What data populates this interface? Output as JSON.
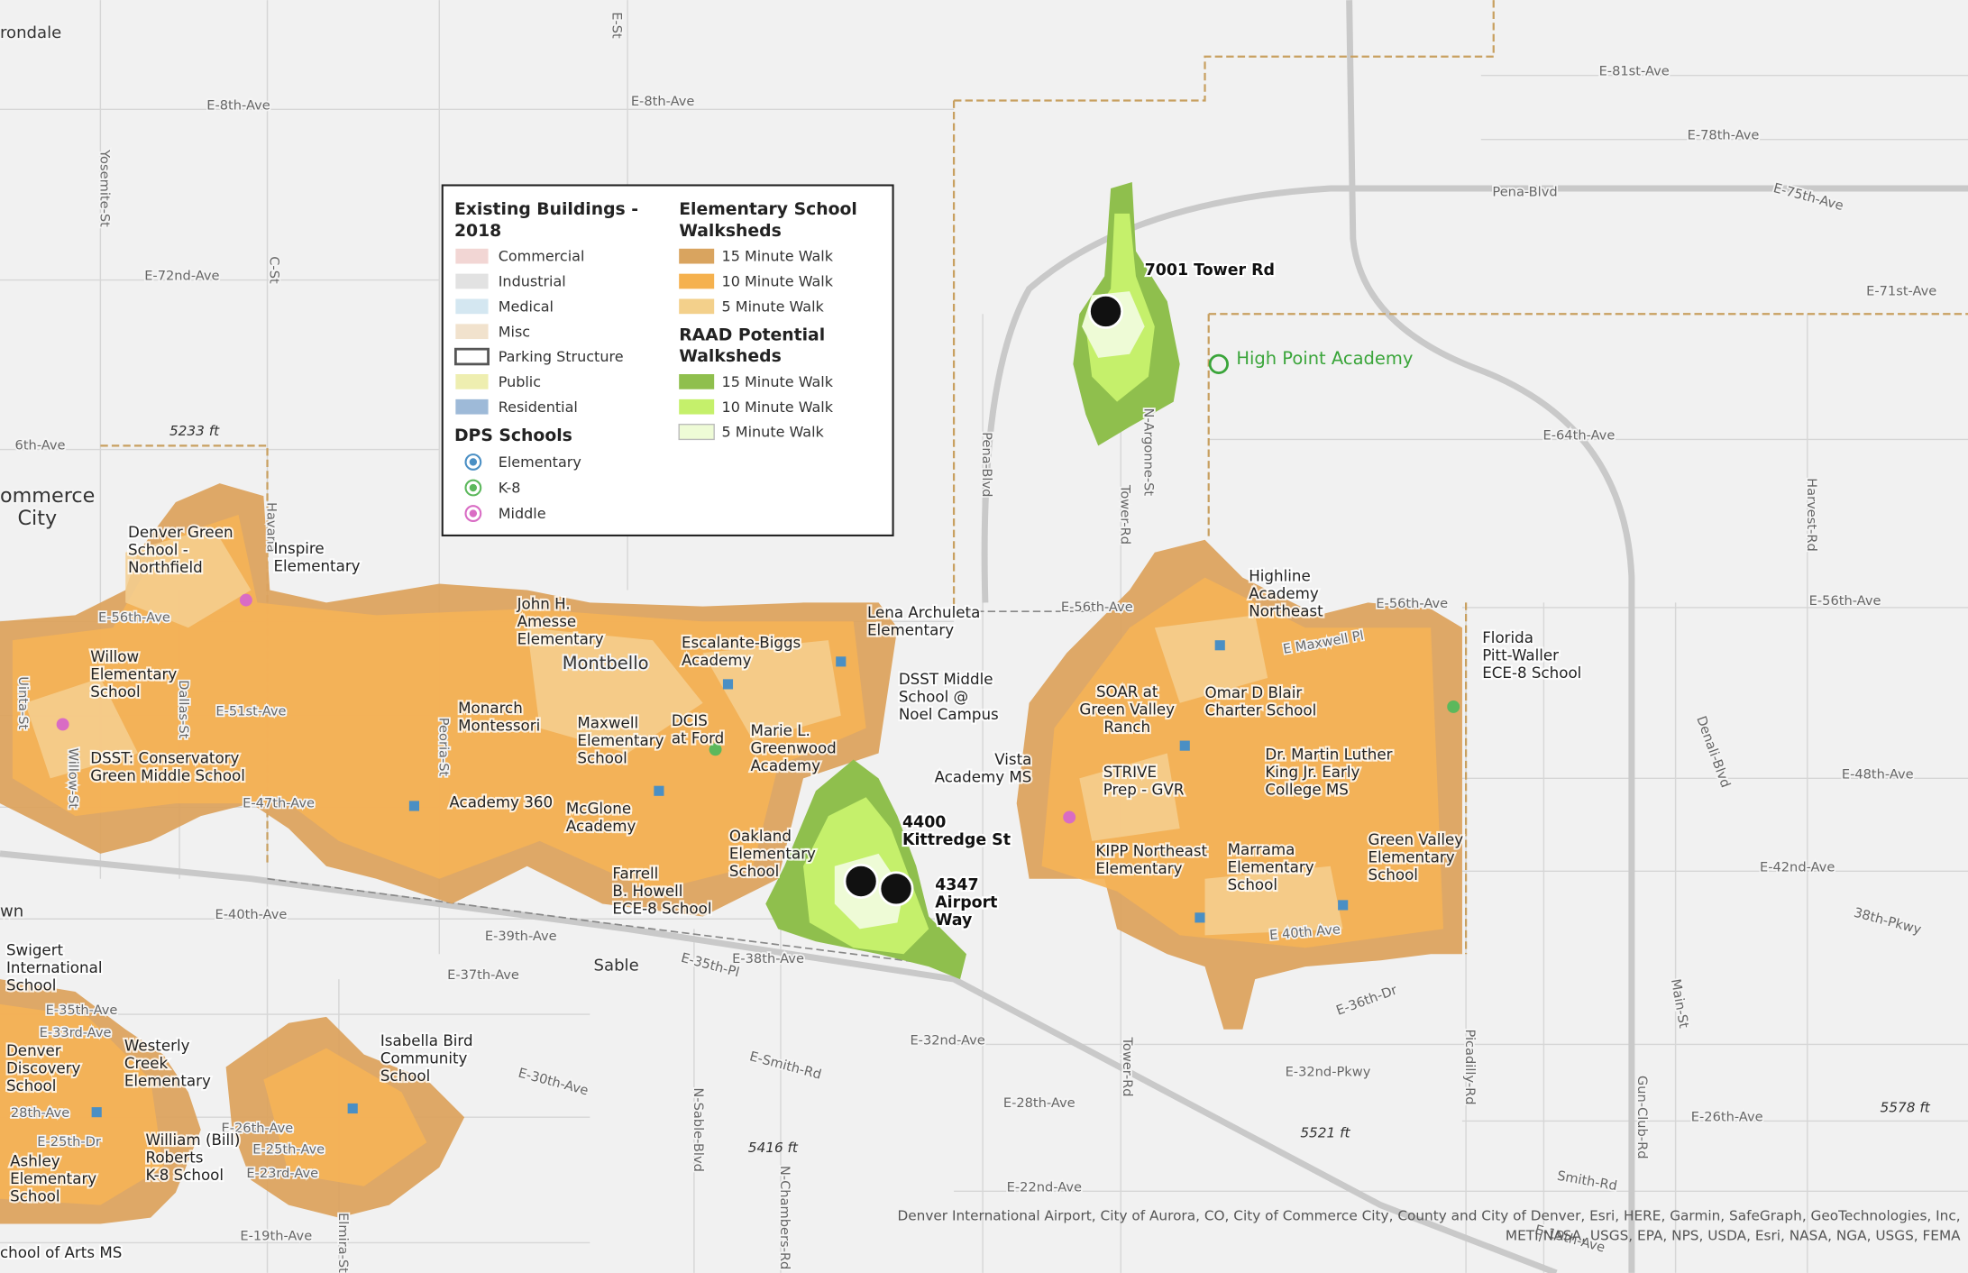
{
  "legend": {
    "buildings": {
      "title": [
        "Existing Buildings -",
        "2018"
      ],
      "items": [
        "Commercial",
        "Industrial",
        "Medical",
        "Misc",
        "Parking Structure",
        "Public",
        "Residential"
      ]
    },
    "dps": {
      "title": "DPS Schools",
      "items": [
        "Elementary",
        "K-8",
        "Middle"
      ]
    },
    "walksheds": {
      "title": [
        "Elementary School",
        "Walksheds"
      ],
      "items": [
        "15 Minute Walk",
        "10 Minute Walk",
        "5 Minute Walk"
      ]
    },
    "raad": {
      "title": [
        "RAAD Potential",
        "Walksheds"
      ],
      "items": [
        "15 Minute Walk",
        "10 Minute Walk",
        "5 Minute Walk"
      ]
    }
  },
  "sites": [
    {
      "lines": [
        "7001 Tower Rd"
      ]
    },
    {
      "lines": [
        "4400",
        "Kittredge St"
      ]
    },
    {
      "lines": [
        "4347",
        "Airport",
        "Way"
      ]
    }
  ],
  "highlight": "High Point Academy",
  "schools": [
    {
      "lines": [
        "Denver Green",
        "School -",
        "Northfield"
      ]
    },
    {
      "lines": [
        "Inspire",
        "Elementary"
      ]
    },
    {
      "lines": [
        "Willow",
        "Elementary",
        "School"
      ]
    },
    {
      "lines": [
        "DSST: Conservatory",
        "Green Middle School"
      ]
    },
    {
      "lines": [
        "John H.",
        "Amesse",
        "Elementary"
      ]
    },
    {
      "lines": [
        "Escalante-Biggs",
        "Academy"
      ]
    },
    {
      "lines": [
        "Lena Archuleta",
        "Elementary"
      ]
    },
    {
      "lines": [
        "DSST Middle",
        "School @",
        "Noel Campus"
      ]
    },
    {
      "lines": [
        "Monarch",
        "Montessori"
      ]
    },
    {
      "lines": [
        "Maxwell",
        "Elementary",
        "School"
      ]
    },
    {
      "lines": [
        "DCIS",
        "at Ford"
      ]
    },
    {
      "lines": [
        "Marie L.",
        "Greenwood",
        "Academy"
      ]
    },
    {
      "lines": [
        "Academy 360"
      ]
    },
    {
      "lines": [
        "McGlone",
        "Academy"
      ]
    },
    {
      "lines": [
        "Oakland",
        "Elementary",
        "School"
      ]
    },
    {
      "lines": [
        "Farrell",
        "B. Howell",
        "ECE-8 School"
      ]
    },
    {
      "lines": [
        "Vista",
        "Academy MS"
      ]
    },
    {
      "lines": [
        "Highline",
        "Academy",
        "Northeast"
      ]
    },
    {
      "lines": [
        "Florida",
        "Pitt-Waller",
        "ECE-8 School"
      ]
    },
    {
      "lines": [
        "SOAR at",
        "Green Valley",
        "Ranch"
      ]
    },
    {
      "lines": [
        "Omar D Blair",
        "Charter School"
      ]
    },
    {
      "lines": [
        "Dr. Martin Luther",
        "King Jr. Early",
        "College MS"
      ]
    },
    {
      "lines": [
        "STRIVE",
        "Prep - GVR"
      ]
    },
    {
      "lines": [
        "KIPP Northeast",
        "Elementary"
      ]
    },
    {
      "lines": [
        "Marrama",
        "Elementary",
        "School"
      ]
    },
    {
      "lines": [
        "Green Valley",
        "Elementary",
        "School"
      ]
    },
    {
      "lines": [
        "Swigert",
        "International",
        "School"
      ]
    },
    {
      "lines": [
        "Denver",
        "Discovery",
        "School"
      ]
    },
    {
      "lines": [
        "Westerly",
        "Creek",
        "Elementary"
      ]
    },
    {
      "lines": [
        "Isabella Bird",
        "Community",
        "School"
      ]
    },
    {
      "lines": [
        "Ashley",
        "Elementary",
        "School"
      ]
    },
    {
      "lines": [
        "William (Bill)",
        "Roberts",
        "K-8 School"
      ]
    },
    {
      "lines": [
        "chool of Arts MS"
      ]
    }
  ],
  "places": [
    "rondale",
    "Montbello",
    "Sable",
    "ommerce",
    "City",
    "wn"
  ],
  "streets": [
    "E-8th-Ave",
    "E-8th-Ave",
    "E-72nd-Ave",
    "6th-Ave",
    "E-56th-Ave",
    "E-51st-Ave",
    "E-47th-Ave",
    "E-40th-Ave",
    "E-39th-Ave",
    "E-37th-Ave",
    "E-35th-Ave",
    "E-33rd-Ave",
    "28th-Ave",
    "E-25th-Dr",
    "E-26th-Ave",
    "E-25th-Ave",
    "E-23rd-Ave",
    "E-19th-Ave",
    "E-38th-Ave",
    "E-35th-Pl",
    "E-30th-Ave",
    "E-32nd-Ave",
    "E-Smith-Rd",
    "E-28th-Ave",
    "E-22nd-Ave",
    "E-81st-Ave",
    "E-78th-Ave",
    "Pena-Blvd",
    "E-75th-Ave",
    "E-71st-Ave",
    "E-64th-Ave",
    "E-56th-Ave",
    "E-56th-Ave",
    "E-56th-Ave",
    "E-48th-Ave",
    "E-42nd-Ave",
    "38th-Pkwy",
    "E-36th-Dr",
    "E-32nd-Pkwy",
    "E-26th-Ave",
    "Smith-Rd",
    "E-19th-Ave",
    "E Maxwell Pl",
    "E 40th Ave",
    "Yosemite-St",
    "C-St",
    "Havana",
    "Dallas-St",
    "Uinta-St",
    "Willow-St",
    "Peoria-St",
    "N-Sable-Blvd",
    "N-Chambers-Rd",
    "Pena-Blvd",
    "Tower-Rd",
    "N-Argonne-St",
    "Tower-Rd",
    "Picadilly-Rd",
    "Denali-Blvd",
    "Harvest-Rd",
    "Main-St",
    "Gun-Club-Rd",
    "Elmira-St",
    "E-St"
  ],
  "elevations": [
    "5233 ft",
    "5416 ft",
    "5521 ft",
    "5578 ft"
  ],
  "attribution": [
    "Denver International Airport, City of Aurora, CO, City of Commerce City, County and City of Denver, Esri, HERE, Garmin, SafeGraph, GeoTechnologies, Inc,",
    "METI/NASA, USGS, EPA, NPS, USDA, Esri, NASA, NGA, USGS, FEMA"
  ]
}
